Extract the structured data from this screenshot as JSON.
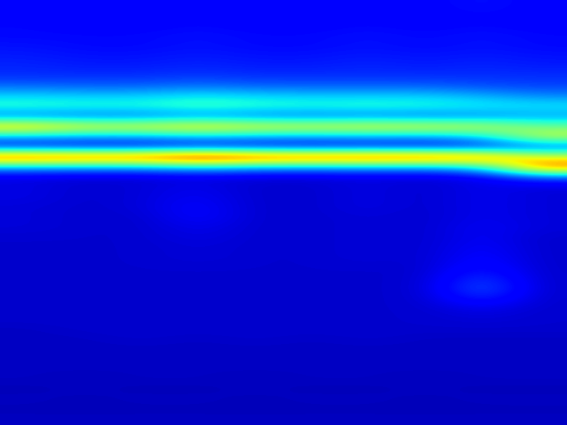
{
  "chart_data": {
    "type": "heatmap",
    "color": "jet",
    "tick_labels": false,
    "color_range": [
      0,
      1
    ],
    "cells": [
      [
        0.12,
        0.13,
        0.12,
        0.13,
        0.12,
        0.12,
        0.13,
        0.12,
        0.14,
        0.12
      ],
      [
        0.12,
        0.12,
        0.12,
        0.13,
        0.12,
        0.12,
        0.13,
        0.12,
        0.13,
        0.12
      ],
      [
        0.13,
        0.12,
        0.12,
        0.13,
        0.12,
        0.12,
        0.13,
        0.12,
        0.13,
        0.12
      ],
      [
        0.13,
        0.13,
        0.13,
        0.14,
        0.13,
        0.13,
        0.14,
        0.13,
        0.14,
        0.13
      ],
      [
        0.14,
        0.13,
        0.13,
        0.14,
        0.13,
        0.13,
        0.14,
        0.13,
        0.14,
        0.13
      ],
      [
        0.15,
        0.14,
        0.14,
        0.15,
        0.14,
        0.14,
        0.15,
        0.14,
        0.15,
        0.14
      ],
      [
        0.16,
        0.15,
        0.15,
        0.16,
        0.15,
        0.15,
        0.16,
        0.15,
        0.16,
        0.15
      ],
      [
        0.17,
        0.17,
        0.17,
        0.18,
        0.17,
        0.17,
        0.17,
        0.17,
        0.17,
        0.17
      ],
      [
        0.23,
        0.22,
        0.22,
        0.24,
        0.22,
        0.22,
        0.22,
        0.22,
        0.2,
        0.19
      ],
      [
        0.34,
        0.33,
        0.33,
        0.36,
        0.34,
        0.33,
        0.33,
        0.33,
        0.3,
        0.26
      ],
      [
        0.4,
        0.39,
        0.39,
        0.42,
        0.4,
        0.39,
        0.4,
        0.39,
        0.37,
        0.36
      ],
      [
        0.24,
        0.23,
        0.23,
        0.26,
        0.24,
        0.23,
        0.24,
        0.23,
        0.25,
        0.28
      ],
      [
        0.72,
        0.64,
        0.64,
        0.68,
        0.64,
        0.63,
        0.64,
        0.63,
        0.6,
        0.48
      ],
      [
        0.3,
        0.28,
        0.28,
        0.31,
        0.29,
        0.28,
        0.29,
        0.28,
        0.33,
        0.6
      ],
      [
        0.14,
        0.13,
        0.13,
        0.15,
        0.14,
        0.13,
        0.14,
        0.13,
        0.15,
        0.2
      ],
      [
        0.88,
        0.87,
        0.87,
        0.95,
        0.89,
        0.87,
        0.88,
        0.87,
        0.82,
        0.62
      ],
      [
        0.3,
        0.29,
        0.29,
        0.34,
        0.3,
        0.29,
        0.3,
        0.29,
        0.35,
        0.82
      ],
      [
        0.09,
        0.08,
        0.08,
        0.09,
        0.08,
        0.08,
        0.09,
        0.08,
        0.1,
        0.2
      ],
      [
        0.09,
        0.07,
        0.08,
        0.1,
        0.07,
        0.07,
        0.09,
        0.07,
        0.1,
        0.08
      ],
      [
        0.09,
        0.07,
        0.08,
        0.11,
        0.07,
        0.07,
        0.09,
        0.07,
        0.1,
        0.08
      ],
      [
        0.08,
        0.07,
        0.08,
        0.12,
        0.07,
        0.07,
        0.09,
        0.07,
        0.1,
        0.08
      ],
      [
        0.08,
        0.07,
        0.07,
        0.12,
        0.07,
        0.07,
        0.08,
        0.07,
        0.1,
        0.08
      ],
      [
        0.08,
        0.07,
        0.07,
        0.1,
        0.07,
        0.07,
        0.08,
        0.07,
        0.11,
        0.08
      ],
      [
        0.07,
        0.07,
        0.07,
        0.09,
        0.07,
        0.07,
        0.08,
        0.07,
        0.11,
        0.07
      ],
      [
        0.07,
        0.07,
        0.07,
        0.08,
        0.07,
        0.07,
        0.08,
        0.07,
        0.12,
        0.07
      ],
      [
        0.07,
        0.07,
        0.07,
        0.08,
        0.07,
        0.07,
        0.08,
        0.07,
        0.13,
        0.07
      ],
      [
        0.07,
        0.07,
        0.07,
        0.07,
        0.07,
        0.07,
        0.07,
        0.07,
        0.15,
        0.07
      ],
      [
        0.07,
        0.07,
        0.07,
        0.07,
        0.07,
        0.07,
        0.07,
        0.07,
        0.19,
        0.07
      ],
      [
        0.07,
        0.07,
        0.07,
        0.07,
        0.07,
        0.07,
        0.07,
        0.07,
        0.22,
        0.07
      ],
      [
        0.07,
        0.07,
        0.07,
        0.07,
        0.07,
        0.07,
        0.07,
        0.07,
        0.17,
        0.07
      ],
      [
        0.07,
        0.07,
        0.07,
        0.07,
        0.07,
        0.07,
        0.07,
        0.07,
        0.1,
        0.07
      ],
      [
        0.07,
        0.07,
        0.07,
        0.07,
        0.07,
        0.07,
        0.07,
        0.07,
        0.08,
        0.07
      ],
      [
        0.06,
        0.07,
        0.07,
        0.07,
        0.07,
        0.07,
        0.07,
        0.07,
        0.07,
        0.07
      ],
      [
        0.06,
        0.06,
        0.07,
        0.06,
        0.07,
        0.06,
        0.07,
        0.06,
        0.06,
        0.06
      ],
      [
        0.06,
        0.06,
        0.06,
        0.06,
        0.06,
        0.06,
        0.06,
        0.06,
        0.06,
        0.06
      ],
      [
        0.06,
        0.06,
        0.06,
        0.06,
        0.06,
        0.06,
        0.06,
        0.06,
        0.06,
        0.06
      ],
      [
        0.06,
        0.06,
        0.06,
        0.06,
        0.06,
        0.06,
        0.06,
        0.06,
        0.06,
        0.06
      ],
      [
        0.06,
        0.05,
        0.06,
        0.06,
        0.05,
        0.06,
        0.06,
        0.05,
        0.06,
        0.06
      ],
      [
        0.05,
        0.06,
        0.05,
        0.05,
        0.06,
        0.05,
        0.05,
        0.06,
        0.05,
        0.05
      ],
      [
        0.06,
        0.05,
        0.06,
        0.06,
        0.05,
        0.06,
        0.06,
        0.05,
        0.06,
        0.06
      ],
      [
        0.05,
        0.05,
        0.05,
        0.05,
        0.05,
        0.05,
        0.05,
        0.05,
        0.05,
        0.05
      ],
      [
        0.06,
        0.06,
        0.06,
        0.06,
        0.06,
        0.06,
        0.06,
        0.06,
        0.06,
        0.06
      ]
    ]
  }
}
